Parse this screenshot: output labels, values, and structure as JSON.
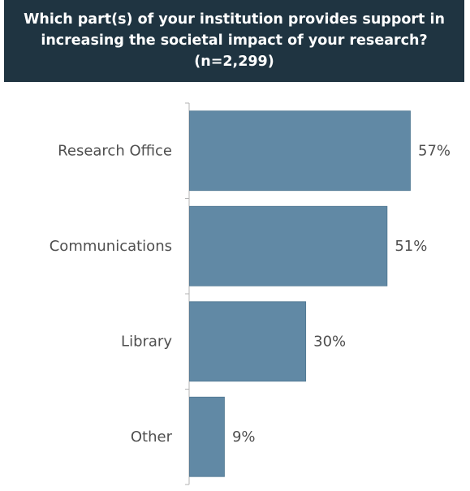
{
  "header": {
    "line1": "Which part(s) of your institution provides support in",
    "line2": "increasing the societal impact of your research?",
    "line3": "(n=2,299)"
  },
  "colors": {
    "header_bg": "#1f3441",
    "bar": "#6189a5",
    "bar_edge": "#4d7590",
    "axis": "#b3b3b3",
    "label": "#4f4f4f"
  },
  "chart_data": {
    "type": "bar",
    "orientation": "horizontal",
    "title": "Which part(s) of your institution provides support in increasing the societal impact of your research? (n=2,299)",
    "categories": [
      "Research Office",
      "Communications",
      "Library",
      "Other"
    ],
    "values": [
      57,
      51,
      30,
      9
    ],
    "value_labels": [
      "57%",
      "51%",
      "30%",
      "9%"
    ],
    "unit": "%",
    "xlim": [
      0,
      60
    ],
    "grid": false,
    "legend": "none"
  }
}
